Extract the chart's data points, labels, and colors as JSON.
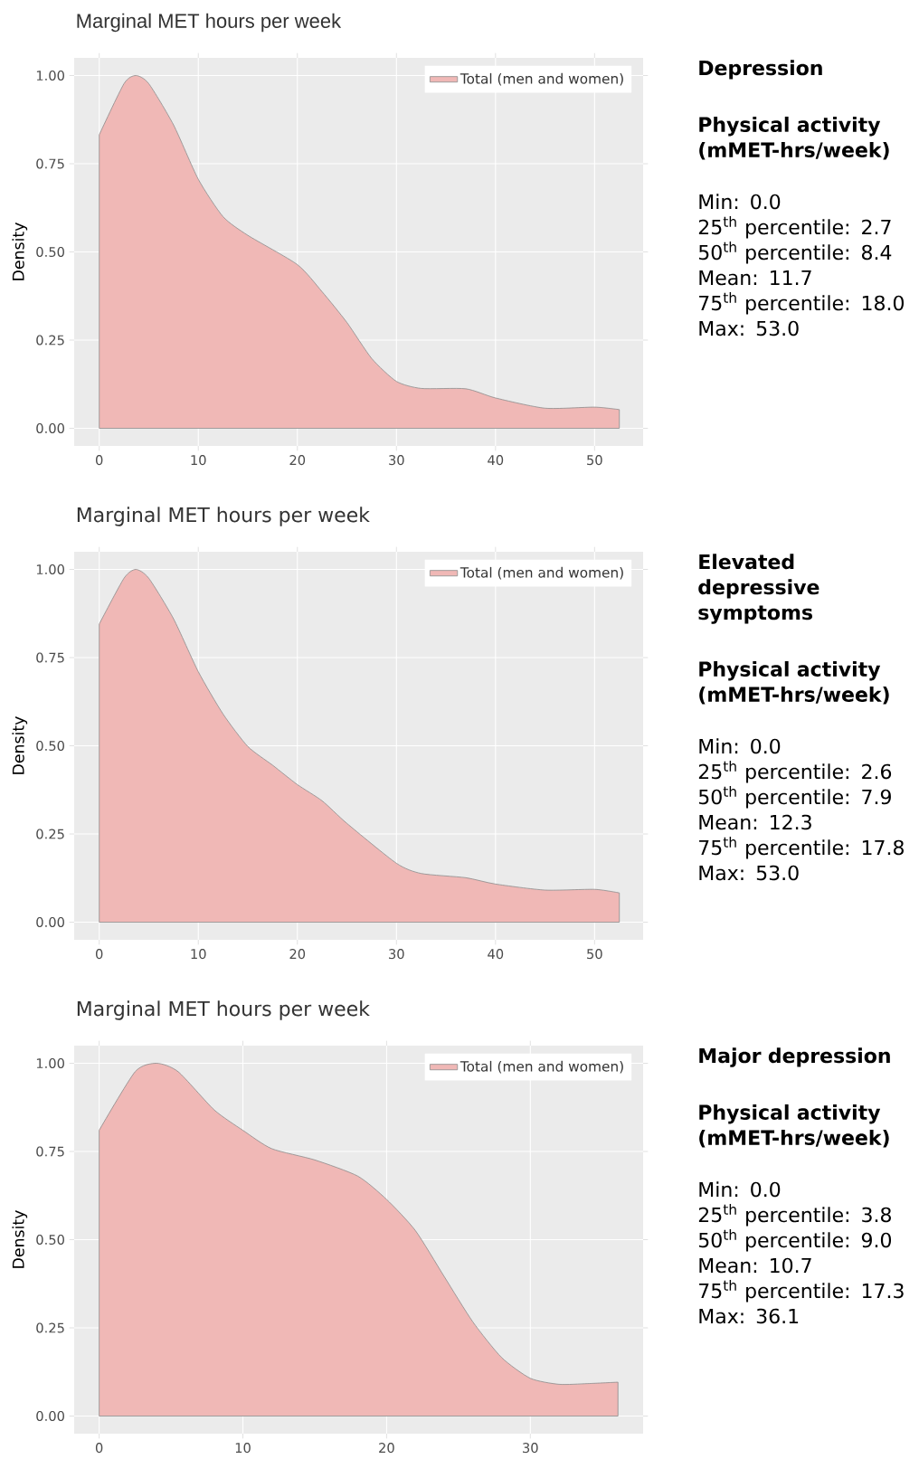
{
  "chart_data": [
    {
      "type": "area",
      "title": "Marginal MET hours per week",
      "ylabel": "Density",
      "xlim": [
        -2.53,
        54.9
      ],
      "ylim": [
        -0.05,
        1.05
      ],
      "xticks": [
        0,
        10,
        20,
        30,
        40,
        50
      ],
      "yticks": [
        {
          "value": 0,
          "label": "0.00"
        },
        {
          "value": 0.25,
          "label": "0.25"
        },
        {
          "value": 0.5,
          "label": "0.50"
        },
        {
          "value": 0.75,
          "label": "0.75"
        },
        {
          "value": 1,
          "label": "1.00"
        }
      ],
      "grid": true,
      "legend": "top right",
      "series": [
        {
          "name": "Total (men and women)",
          "color": "#f0b8b6",
          "x": [
            0,
            2.5,
            3.7,
            5,
            7.5,
            10,
            12.5,
            15,
            20,
            22.5,
            25,
            27.5,
            30,
            32.5,
            37,
            40,
            45,
            50,
            52.5
          ],
          "values": [
            0.832,
            0.977,
            1.0,
            0.977,
            0.86,
            0.706,
            0.6,
            0.547,
            0.464,
            0.387,
            0.3,
            0.198,
            0.133,
            0.113,
            0.112,
            0.086,
            0.057,
            0.06,
            0.053
          ]
        }
      ]
    },
    {
      "type": "other",
      "title": "Depression",
      "subtitle": "Physical activity (mMET-hrs/week)",
      "annotations": [
        "Min: 0.0",
        "25$^{th}$ percentile: 2.7",
        "50$^{th}$ percentile: 8.4",
        "Mean: 11.7",
        "75$^{th}$ percentile: 18.0",
        "Max: 53.0"
      ]
    },
    {
      "type": "area",
      "title": "Marginal MET hours per week",
      "ylabel": "Density",
      "xlim": [
        -2.53,
        54.9
      ],
      "ylim": [
        -0.05,
        1.05
      ],
      "xticks": [
        0,
        10,
        20,
        30,
        40,
        50
      ],
      "yticks": [
        {
          "value": 0,
          "label": "0.00"
        },
        {
          "value": 0.25,
          "label": "0.25"
        },
        {
          "value": 0.5,
          "label": "0.50"
        },
        {
          "value": 0.75,
          "label": "0.75"
        },
        {
          "value": 1,
          "label": "1.00"
        }
      ],
      "grid": true,
      "legend": "top right",
      "series": [
        {
          "name": "Total (men and women)",
          "color": "#f0b8b6",
          "x": [
            0,
            2.5,
            3.7,
            5,
            7.5,
            10,
            12.5,
            15,
            17.5,
            20,
            22.5,
            25,
            30,
            32.5,
            37,
            40,
            45,
            50,
            52.5
          ],
          "values": [
            0.845,
            0.975,
            1.0,
            0.975,
            0.86,
            0.71,
            0.59,
            0.498,
            0.445,
            0.39,
            0.344,
            0.28,
            0.167,
            0.138,
            0.126,
            0.108,
            0.091,
            0.093,
            0.083
          ]
        }
      ]
    },
    {
      "type": "other",
      "title": "Elevated depressive symptoms",
      "subtitle": "Physical activity (mMET-hrs/week)",
      "annotations": [
        "Min: 0.0",
        "25$^{th}$ percentile: 2.6",
        "50$^{th}$ percentile: 7.9",
        "Mean: 12.3",
        "75$^{th}$ percentile: 17.8",
        "Max: 53.0"
      ]
    },
    {
      "type": "area",
      "title": "Marginal MET hours per week",
      "ylabel": "Density",
      "xlim": [
        -1.74,
        37.85
      ],
      "ylim": [
        -0.05,
        1.05
      ],
      "xticks": [
        0,
        10,
        20,
        30
      ],
      "yticks": [
        {
          "value": 0,
          "label": "0.00"
        },
        {
          "value": 0.25,
          "label": "0.25"
        },
        {
          "value": 0.5,
          "label": "0.50"
        },
        {
          "value": 0.75,
          "label": "0.75"
        },
        {
          "value": 1,
          "label": "1.00"
        }
      ],
      "grid": true,
      "legend": "top right",
      "series": [
        {
          "name": "Total (men and women)",
          "color": "#f0b8b6",
          "x": [
            0,
            2.5,
            4,
            5.5,
            8,
            10,
            12,
            15,
            18,
            20,
            22,
            24,
            26,
            28,
            30,
            32,
            34,
            36.1
          ],
          "values": [
            0.81,
            0.976,
            1.0,
            0.976,
            0.868,
            0.81,
            0.758,
            0.726,
            0.68,
            0.614,
            0.526,
            0.396,
            0.267,
            0.166,
            0.107,
            0.09,
            0.092,
            0.096
          ]
        }
      ]
    },
    {
      "type": "other",
      "title": "Major depression",
      "subtitle": "Physical activity (mMET-hrs/week)",
      "annotations": [
        "Min: 0.0",
        "25$^{th}$ percentile: 3.8",
        "50$^{th}$ percentile: 9.0",
        "Mean: 10.7",
        "75$^{th}$ percentile: 17.3",
        "Max: 36.1"
      ]
    }
  ]
}
